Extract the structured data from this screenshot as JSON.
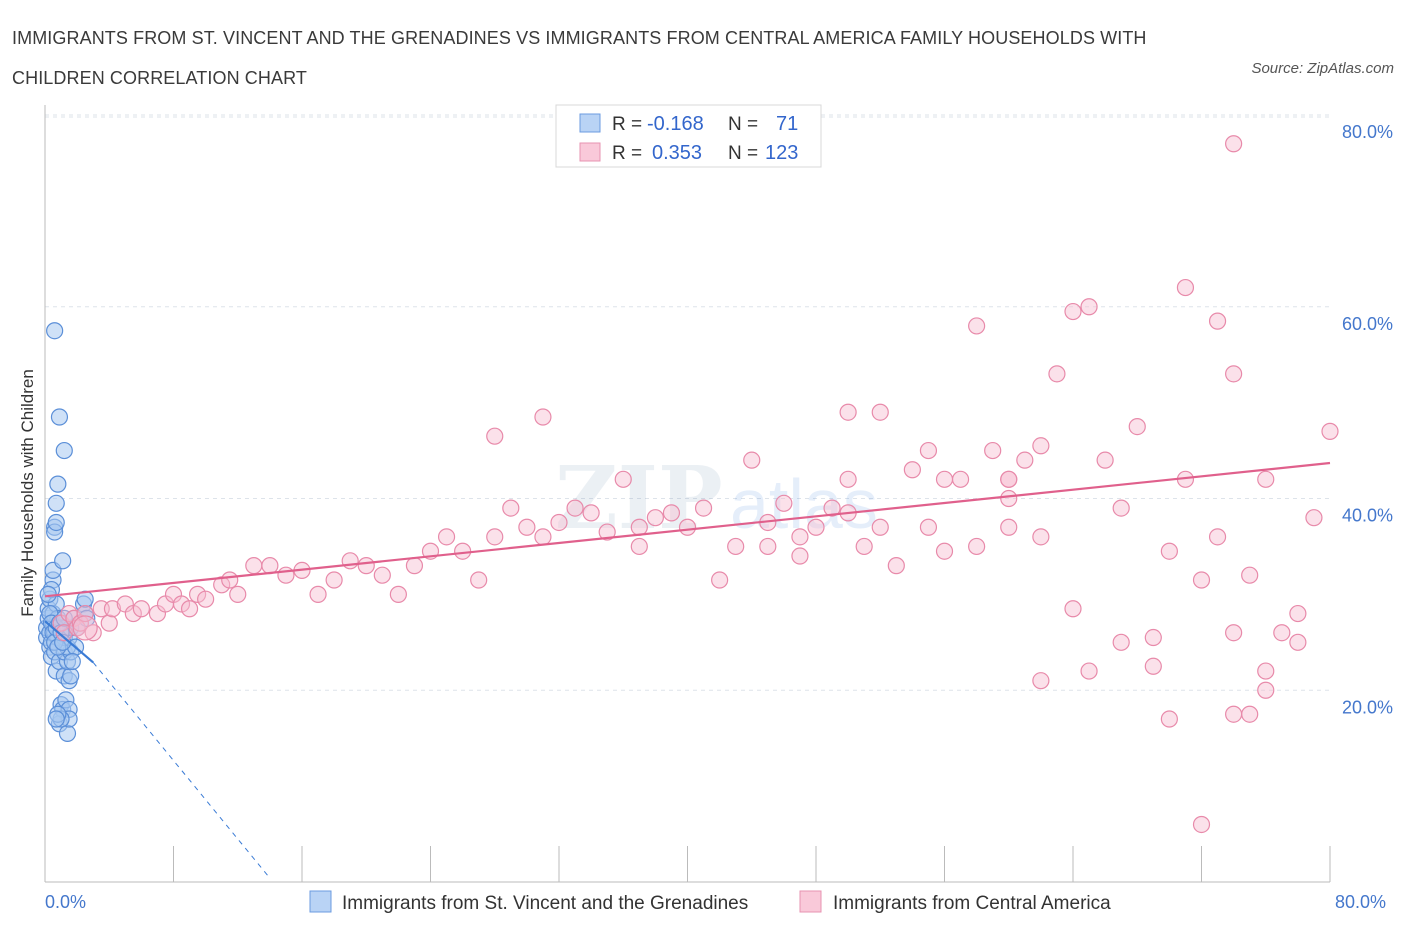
{
  "title": "IMMIGRANTS FROM ST. VINCENT AND THE GRENADINES VS IMMIGRANTS FROM CENTRAL AMERICA FAMILY HOUSEHOLDS WITH CHILDREN CORRELATION CHART",
  "source": "Source: ZipAtlas.com",
  "colors": {
    "blue_fill": "#a8c8f0",
    "blue_stroke": "#5b8fd8",
    "blue_line": "#3a7bd5",
    "pink_fill": "#f7bcd0",
    "pink_stroke": "#e88aaa",
    "pink_line": "#e0608c",
    "grid": "#dde3ea",
    "tick_text": "#4477cc"
  },
  "legend_box": {
    "rows": [
      {
        "r_label": "R =",
        "r_value": "-0.168",
        "n_label": "N =",
        "n_value": "71"
      },
      {
        "r_label": "R =",
        "r_value": "0.353",
        "n_label": "N =",
        "n_value": "123"
      }
    ]
  },
  "watermark": {
    "zip": "ZIP",
    "atlas": "atlas"
  },
  "chart_data": {
    "type": "scatter",
    "xlabel": "",
    "ylabel": "Family Households with Children",
    "xlim": [
      0,
      80
    ],
    "ylim": [
      0,
      80
    ],
    "x_tick_labels": [
      "0.0%",
      "80.0%"
    ],
    "y_ticks": [
      20,
      40,
      60,
      80
    ],
    "y_tick_labels": [
      "20.0%",
      "40.0%",
      "60.0%",
      "80.0%"
    ],
    "grid": true,
    "legend_position": "bottom",
    "series": [
      {
        "name": "Immigrants from St. Vincent and the Grenadines",
        "color": "#a8c8f0",
        "trend": {
          "x": [
            0,
            3
          ],
          "y": [
            27.2,
            22.9
          ],
          "dashed_extension": {
            "x": [
              3,
              14
            ],
            "y": [
              22.9,
              0.4
            ]
          }
        },
        "points": [
          [
            0.1,
            25.5
          ],
          [
            0.1,
            26.5
          ],
          [
            0.2,
            27.5
          ],
          [
            0.2,
            28.5
          ],
          [
            0.3,
            24.5
          ],
          [
            0.3,
            29.5
          ],
          [
            0.3,
            26
          ],
          [
            0.4,
            23.5
          ],
          [
            0.4,
            25
          ],
          [
            0.5,
            27
          ],
          [
            0.5,
            28
          ],
          [
            0.5,
            31.5
          ],
          [
            0.6,
            24
          ],
          [
            0.6,
            26
          ],
          [
            0.7,
            22
          ],
          [
            0.7,
            29
          ],
          [
            0.8,
            25.5
          ],
          [
            0.8,
            27.5
          ],
          [
            0.9,
            23
          ],
          [
            0.9,
            16.5
          ],
          [
            0.5,
            32.5
          ],
          [
            0.4,
            30.5
          ],
          [
            0.6,
            37
          ],
          [
            0.7,
            39.5
          ],
          [
            0.8,
            41.5
          ],
          [
            0.6,
            36.5
          ],
          [
            0.7,
            37.5
          ],
          [
            1.1,
            33.5
          ],
          [
            1.2,
            45
          ],
          [
            0.9,
            48.5
          ],
          [
            0.6,
            57.5
          ],
          [
            1,
            18.5
          ],
          [
            1.1,
            18
          ],
          [
            1.3,
            19
          ],
          [
            1.4,
            15.5
          ],
          [
            1.5,
            18
          ],
          [
            1.5,
            17
          ],
          [
            1,
            17
          ],
          [
            0.8,
            17.5
          ],
          [
            0.7,
            17
          ],
          [
            1.2,
            21.5
          ],
          [
            1.5,
            21
          ],
          [
            1.6,
            21.5
          ],
          [
            1.4,
            23
          ],
          [
            1.2,
            24
          ],
          [
            1.6,
            24
          ],
          [
            1.4,
            24.5
          ],
          [
            1.2,
            25.5
          ],
          [
            1.5,
            25.5
          ],
          [
            1.1,
            26.5
          ],
          [
            1.3,
            26.5
          ],
          [
            1.6,
            26.5
          ],
          [
            1.8,
            27.5
          ],
          [
            2,
            26.5
          ],
          [
            1.9,
            24.5
          ],
          [
            1.7,
            23
          ],
          [
            2.4,
            29
          ],
          [
            2.5,
            28
          ],
          [
            2.6,
            27.5
          ],
          [
            2.5,
            29.5
          ],
          [
            0.3,
            28
          ],
          [
            0.4,
            27
          ],
          [
            0.5,
            26
          ],
          [
            0.6,
            25
          ],
          [
            0.7,
            26.5
          ],
          [
            0.8,
            24.5
          ],
          [
            0.9,
            27
          ],
          [
            1,
            26
          ],
          [
            1.1,
            25
          ],
          [
            1.2,
            27.5
          ],
          [
            0.2,
            30
          ]
        ]
      },
      {
        "name": "Immigrants from Central America",
        "color": "#f7bcd0",
        "trend": {
          "x": [
            0,
            80
          ],
          "y": [
            29.8,
            43.7
          ]
        },
        "points": [
          [
            1,
            27
          ],
          [
            1.2,
            26
          ],
          [
            1.5,
            28
          ],
          [
            1.8,
            27.5
          ],
          [
            2,
            26.5
          ],
          [
            2.2,
            27
          ],
          [
            2.5,
            28
          ],
          [
            3,
            26
          ],
          [
            3.5,
            28.5
          ],
          [
            4,
            27
          ],
          [
            4.2,
            28.5
          ],
          [
            5,
            29
          ],
          [
            5.5,
            28
          ],
          [
            6,
            28.5
          ],
          [
            7,
            28
          ],
          [
            7.5,
            29
          ],
          [
            8,
            30
          ],
          [
            8.5,
            29
          ],
          [
            9,
            28.5
          ],
          [
            9.5,
            30
          ],
          [
            10,
            29.5
          ],
          [
            11,
            31
          ],
          [
            11.5,
            31.5
          ],
          [
            12,
            30
          ],
          [
            13,
            33
          ],
          [
            14,
            33
          ],
          [
            15,
            32
          ],
          [
            16,
            32.5
          ],
          [
            17,
            30
          ],
          [
            18,
            31.5
          ],
          [
            19,
            33.5
          ],
          [
            20,
            33
          ],
          [
            21,
            32
          ],
          [
            22,
            30
          ],
          [
            23,
            33
          ],
          [
            24,
            34.5
          ],
          [
            25,
            36
          ],
          [
            26,
            34.5
          ],
          [
            27,
            31.5
          ],
          [
            28,
            36
          ],
          [
            29,
            39
          ],
          [
            30,
            37
          ],
          [
            31,
            36
          ],
          [
            32,
            37.5
          ],
          [
            33,
            39
          ],
          [
            34,
            38.5
          ],
          [
            35,
            36.5
          ],
          [
            36,
            42
          ],
          [
            37,
            37
          ],
          [
            38,
            38
          ],
          [
            39,
            38.5
          ],
          [
            40,
            37
          ],
          [
            41,
            39
          ],
          [
            42,
            31.5
          ],
          [
            43,
            35
          ],
          [
            44,
            44
          ],
          [
            45,
            37.5
          ],
          [
            46,
            39.5
          ],
          [
            47,
            36
          ],
          [
            48,
            37
          ],
          [
            49,
            39
          ],
          [
            50,
            42
          ],
          [
            51,
            35
          ],
          [
            52,
            49
          ],
          [
            53,
            33
          ],
          [
            54,
            43
          ],
          [
            55,
            37
          ],
          [
            56,
            42
          ],
          [
            57,
            42
          ],
          [
            58,
            35
          ],
          [
            59,
            45
          ],
          [
            60,
            42
          ],
          [
            61,
            44
          ],
          [
            62,
            45.5
          ],
          [
            63,
            53
          ],
          [
            64,
            59.5
          ],
          [
            65,
            60
          ],
          [
            66,
            44
          ],
          [
            67,
            39
          ],
          [
            68,
            47.5
          ],
          [
            69,
            25.5
          ],
          [
            70,
            34.5
          ],
          [
            71,
            62
          ],
          [
            72,
            31.5
          ],
          [
            73,
            58.5
          ],
          [
            74,
            53
          ],
          [
            75,
            17.5
          ],
          [
            76,
            42
          ],
          [
            77,
            26
          ],
          [
            78,
            25
          ],
          [
            79,
            38
          ],
          [
            80,
            47
          ],
          [
            28,
            46.5
          ],
          [
            31,
            48.5
          ],
          [
            37,
            35
          ],
          [
            50,
            38.5
          ],
          [
            58,
            58
          ],
          [
            65,
            22
          ],
          [
            70,
            17
          ],
          [
            76,
            20
          ],
          [
            50,
            49
          ],
          [
            60,
            40
          ],
          [
            67,
            25
          ],
          [
            72,
            6
          ],
          [
            74,
            26
          ],
          [
            55,
            45
          ],
          [
            60,
            42
          ],
          [
            62,
            21
          ],
          [
            64,
            28.5
          ],
          [
            69,
            22.5
          ],
          [
            71,
            42
          ],
          [
            73,
            36
          ],
          [
            75,
            32
          ],
          [
            78,
            28
          ],
          [
            74,
            17.5
          ],
          [
            60,
            37
          ],
          [
            62,
            36
          ],
          [
            74,
            77
          ],
          [
            76,
            22
          ],
          [
            45,
            35
          ],
          [
            47,
            34
          ],
          [
            52,
            37
          ],
          [
            56,
            34.5
          ]
        ]
      }
    ]
  }
}
